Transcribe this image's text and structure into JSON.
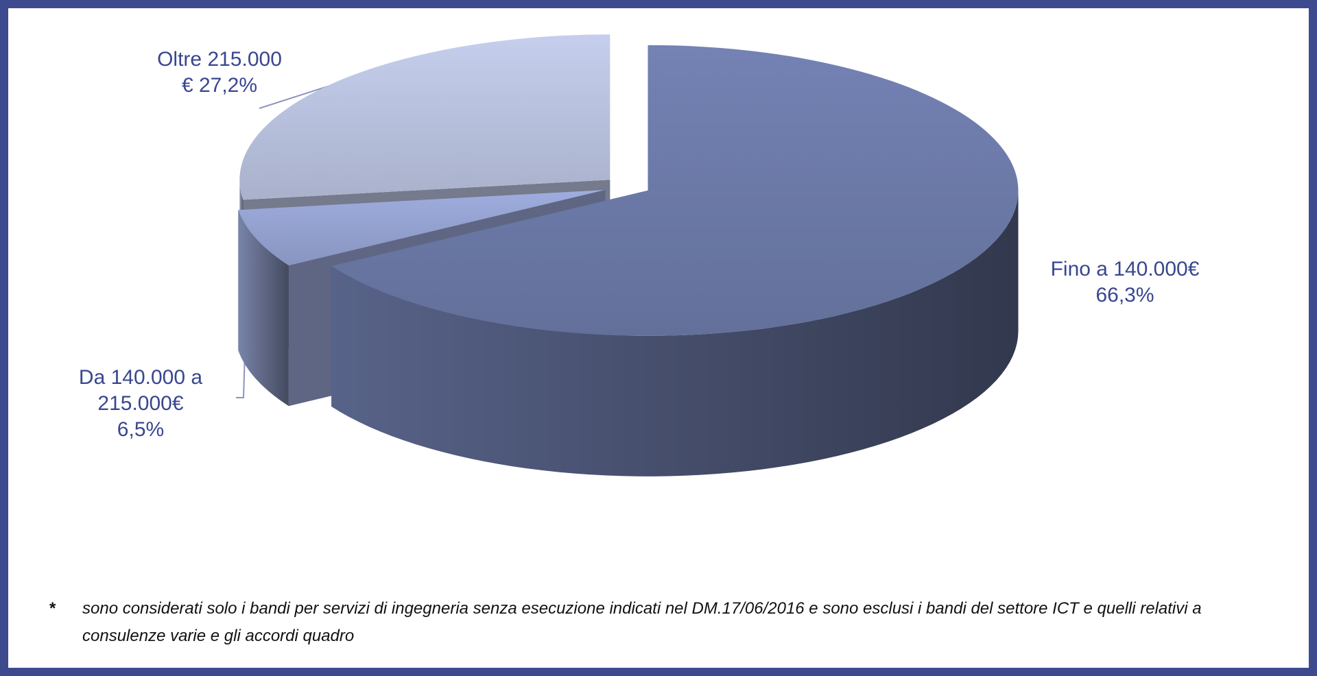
{
  "chart_data": {
    "type": "pie",
    "categories": [
      "Fino a 140.000€",
      "Da 140.000 a 215.000€",
      "Oltre 215.000 €"
    ],
    "values": [
      66.3,
      6.5,
      27.2
    ],
    "value_labels": [
      "66,3%",
      "6,5%",
      "27,2%"
    ],
    "colors": [
      "#6e7cab",
      "#97a5d4",
      "#bcc5e2"
    ]
  },
  "footnote": {
    "marker": "*",
    "text": "sono considerati solo i bandi per servizi di ingegneria senza esecuzione indicati nel DM.17/06/2016 e sono esclusi i bandi del settore ICT e quelli relativi a consulenze varie e gli accordi quadro"
  }
}
